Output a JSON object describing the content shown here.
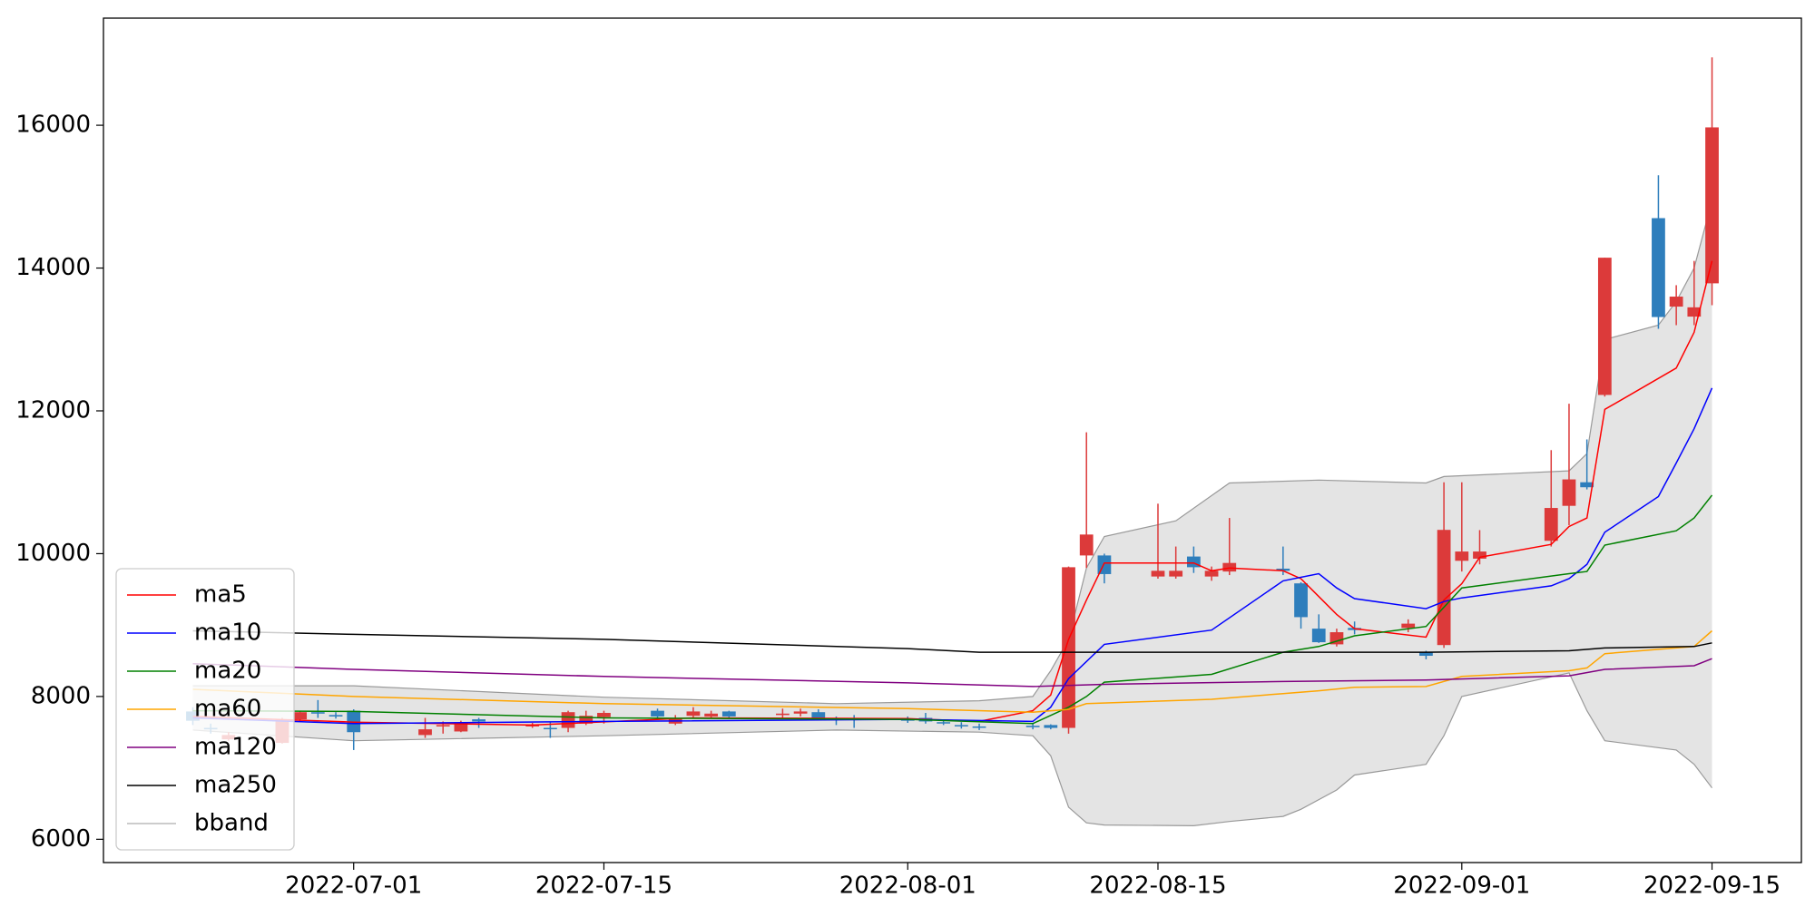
{
  "chart_data": {
    "type": "candlestick",
    "x": [
      "2022-06-22",
      "2022-06-23",
      "2022-06-24",
      "2022-06-27",
      "2022-06-28",
      "2022-06-29",
      "2022-06-30",
      "2022-07-01",
      "2022-07-05",
      "2022-07-06",
      "2022-07-07",
      "2022-07-08",
      "2022-07-11",
      "2022-07-12",
      "2022-07-13",
      "2022-07-14",
      "2022-07-15",
      "2022-07-18",
      "2022-07-19",
      "2022-07-20",
      "2022-07-21",
      "2022-07-22",
      "2022-07-25",
      "2022-07-26",
      "2022-07-27",
      "2022-07-28",
      "2022-07-29",
      "2022-08-01",
      "2022-08-02",
      "2022-08-03",
      "2022-08-04",
      "2022-08-05",
      "2022-08-08",
      "2022-08-09",
      "2022-08-10",
      "2022-08-11",
      "2022-08-12",
      "2022-08-15",
      "2022-08-16",
      "2022-08-17",
      "2022-08-18",
      "2022-08-19",
      "2022-08-22",
      "2022-08-23",
      "2022-08-24",
      "2022-08-25",
      "2022-08-26",
      "2022-08-29",
      "2022-08-30",
      "2022-08-31",
      "2022-09-01",
      "2022-09-02",
      "2022-09-06",
      "2022-09-07",
      "2022-09-08",
      "2022-09-09",
      "2022-09-12",
      "2022-09-13",
      "2022-09-14",
      "2022-09-15"
    ],
    "open": [
      7790,
      7560,
      7400,
      7350,
      7680,
      7780,
      7740,
      7800,
      7460,
      7580,
      7510,
      7680,
      7580,
      7560,
      7560,
      7620,
      7710,
      7800,
      7620,
      7730,
      7720,
      7790,
      7740,
      7760,
      7780,
      7700,
      7690,
      7680,
      7700,
      7640,
      7600,
      7580,
      7590,
      7600,
      7560,
      9975,
      9975,
      9680,
      9680,
      9960,
      9680,
      9750,
      9790,
      9584,
      8950,
      8730,
      8960,
      8960,
      8620,
      8720,
      9900,
      9930,
      10180,
      10670,
      11000,
      12223,
      14699,
      13460,
      13320,
      13786
    ],
    "high": [
      7850,
      7620,
      7500,
      7700,
      7800,
      7950,
      7780,
      7820,
      7700,
      7650,
      7660,
      7700,
      7630,
      7650,
      7800,
      7800,
      7800,
      7830,
      7740,
      7850,
      7800,
      7800,
      7830,
      7830,
      7820,
      7720,
      7740,
      7720,
      7770,
      7680,
      7640,
      7620,
      7620,
      7610,
      9820,
      11700,
      10000,
      10700,
      10100,
      10100,
      9820,
      10500,
      10100,
      9600,
      9150,
      8950,
      9050,
      9080,
      8640,
      11000,
      11000,
      10330,
      11450,
      12100,
      11600,
      14145,
      15300,
      13760,
      14100,
      16950
    ],
    "low": [
      7600,
      7480,
      7380,
      7340,
      7650,
      7700,
      7690,
      7250,
      7420,
      7480,
      7500,
      7560,
      7560,
      7420,
      7500,
      7600,
      7620,
      7690,
      7600,
      7700,
      7700,
      7700,
      7690,
      7720,
      7680,
      7600,
      7560,
      7630,
      7620,
      7600,
      7550,
      7530,
      7540,
      7540,
      7480,
      9800,
      9584,
      9650,
      9650,
      9730,
      9620,
      9700,
      9700,
      8950,
      8750,
      8700,
      8870,
      8900,
      8520,
      8680,
      9750,
      9850,
      10100,
      10400,
      10900,
      12200,
      13150,
      13200,
      13200,
      13480
    ],
    "close": [
      7660,
      7540,
      7460,
      7680,
      7780,
      7760,
      7720,
      7500,
      7540,
      7600,
      7630,
      7650,
      7610,
      7550,
      7780,
      7730,
      7770,
      7720,
      7700,
      7790,
      7760,
      7720,
      7760,
      7790,
      7690,
      7680,
      7670,
      7660,
      7650,
      7630,
      7590,
      7570,
      7570,
      7560,
      9810,
      10268,
      9714,
      9760,
      9760,
      9810,
      9760,
      9870,
      9760,
      9111,
      8760,
      8900,
      8930,
      9020,
      8570,
      10333,
      10030,
      10030,
      10640,
      11040,
      10930,
      14145,
      13314,
      13600,
      13450,
      15970
    ],
    "up_color": "#dc3a3a",
    "down_color": "#2e7ebc",
    "series": [
      {
        "name": "ma5",
        "color": "#ff0000",
        "x": [
          "2022-06-22",
          "2022-07-01",
          "2022-07-11",
          "2022-07-20",
          "2022-08-01",
          "2022-08-05",
          "2022-08-08",
          "2022-08-09",
          "2022-08-10",
          "2022-08-11",
          "2022-08-12",
          "2022-08-17",
          "2022-08-18",
          "2022-08-19",
          "2022-08-22",
          "2022-08-23",
          "2022-08-24",
          "2022-08-25",
          "2022-08-26",
          "2022-08-30",
          "2022-08-31",
          "2022-09-01",
          "2022-09-02",
          "2022-09-06",
          "2022-09-07",
          "2022-09-08",
          "2022-09-09",
          "2022-09-13",
          "2022-09-14",
          "2022-09-15"
        ],
        "values": [
          7720,
          7640,
          7600,
          7700,
          7690,
          7650,
          7800,
          8020,
          8800,
          9350,
          9870,
          9870,
          9760,
          9800,
          9760,
          9650,
          9400,
          9150,
          8950,
          8830,
          9350,
          9580,
          9950,
          10130,
          10380,
          10500,
          12020,
          12600,
          13100,
          14100
        ]
      },
      {
        "name": "ma10",
        "color": "#0000ff",
        "x": [
          "2022-06-22",
          "2022-07-01",
          "2022-07-15",
          "2022-08-01",
          "2022-08-08",
          "2022-08-09",
          "2022-08-10",
          "2022-08-12",
          "2022-08-18",
          "2022-08-22",
          "2022-08-24",
          "2022-08-25",
          "2022-08-26",
          "2022-08-30",
          "2022-08-31",
          "2022-09-01",
          "2022-09-06",
          "2022-09-07",
          "2022-09-08",
          "2022-09-09",
          "2022-09-12",
          "2022-09-13",
          "2022-09-14",
          "2022-09-15"
        ],
        "values": [
          7700,
          7620,
          7650,
          7680,
          7650,
          7850,
          8250,
          8730,
          8930,
          9620,
          9720,
          9520,
          9370,
          9230,
          9330,
          9380,
          9550,
          9650,
          9850,
          10300,
          10800,
          11270,
          11750,
          12320
        ]
      },
      {
        "name": "ma20",
        "color": "#008000",
        "x": [
          "2022-06-22",
          "2022-07-01",
          "2022-07-15",
          "2022-08-01",
          "2022-08-08",
          "2022-08-10",
          "2022-08-11",
          "2022-08-12",
          "2022-08-18",
          "2022-08-22",
          "2022-08-24",
          "2022-08-26",
          "2022-08-30",
          "2022-08-31",
          "2022-09-01",
          "2022-09-07",
          "2022-09-08",
          "2022-09-09",
          "2022-09-13",
          "2022-09-14",
          "2022-09-15"
        ],
        "values": [
          7800,
          7790,
          7700,
          7680,
          7620,
          7850,
          8000,
          8200,
          8310,
          8620,
          8700,
          8850,
          8980,
          9250,
          9520,
          9720,
          9750,
          10120,
          10320,
          10500,
          10820
        ]
      },
      {
        "name": "ma60",
        "color": "#ffa500",
        "x": [
          "2022-06-22",
          "2022-07-01",
          "2022-07-15",
          "2022-08-01",
          "2022-08-08",
          "2022-08-10",
          "2022-08-11",
          "2022-08-18",
          "2022-08-22",
          "2022-08-24",
          "2022-08-26",
          "2022-08-30",
          "2022-09-01",
          "2022-09-07",
          "2022-09-08",
          "2022-09-09",
          "2022-09-14",
          "2022-09-15"
        ],
        "values": [
          8100,
          8000,
          7900,
          7830,
          7780,
          7820,
          7900,
          7960,
          8040,
          8080,
          8130,
          8140,
          8280,
          8360,
          8400,
          8600,
          8700,
          8920
        ]
      },
      {
        "name": "ma120",
        "color": "#800080",
        "x": [
          "2022-06-22",
          "2022-07-01",
          "2022-07-15",
          "2022-08-01",
          "2022-08-08",
          "2022-08-12",
          "2022-08-22",
          "2022-08-30",
          "2022-09-07",
          "2022-09-09",
          "2022-09-14",
          "2022-09-15"
        ],
        "values": [
          8460,
          8380,
          8280,
          8190,
          8140,
          8170,
          8210,
          8230,
          8290,
          8380,
          8430,
          8530
        ]
      },
      {
        "name": "ma250",
        "color": "#000000",
        "x": [
          "2022-06-22",
          "2022-07-01",
          "2022-07-15",
          "2022-08-01",
          "2022-08-05",
          "2022-08-30",
          "2022-09-07",
          "2022-09-09",
          "2022-09-14",
          "2022-09-15"
        ],
        "values": [
          8920,
          8870,
          8800,
          8670,
          8620,
          8620,
          8640,
          8680,
          8700,
          8750
        ]
      }
    ],
    "band": {
      "name": "bband",
      "color": "#999999",
      "fill": "#e4e4e4",
      "upper": {
        "x": [
          "2022-06-22",
          "2022-07-01",
          "2022-07-15",
          "2022-07-28",
          "2022-08-05",
          "2022-08-08",
          "2022-08-09",
          "2022-08-10",
          "2022-08-11",
          "2022-08-12",
          "2022-08-16",
          "2022-08-19",
          "2022-08-24",
          "2022-08-30",
          "2022-08-31",
          "2022-09-07",
          "2022-09-08",
          "2022-09-09",
          "2022-09-12",
          "2022-09-13",
          "2022-09-14",
          "2022-09-15"
        ],
        "values": [
          8150,
          8150,
          7990,
          7900,
          7940,
          8000,
          8360,
          8800,
          9800,
          10240,
          10460,
          10990,
          11030,
          10990,
          11080,
          11160,
          11400,
          13000,
          13200,
          13530,
          14000,
          14940
        ]
      },
      "lower": {
        "x": [
          "2022-06-22",
          "2022-07-01",
          "2022-07-15",
          "2022-07-28",
          "2022-08-05",
          "2022-08-08",
          "2022-08-09",
          "2022-08-10",
          "2022-08-11",
          "2022-08-12",
          "2022-08-17",
          "2022-08-19",
          "2022-08-22",
          "2022-08-23",
          "2022-08-25",
          "2022-08-26",
          "2022-08-30",
          "2022-08-31",
          "2022-09-01",
          "2022-09-07",
          "2022-09-08",
          "2022-09-09",
          "2022-09-13",
          "2022-09-14",
          "2022-09-15"
        ],
        "values": [
          7530,
          7380,
          7450,
          7530,
          7500,
          7450,
          7170,
          6450,
          6230,
          6200,
          6190,
          6250,
          6320,
          6420,
          6690,
          6900,
          7050,
          7450,
          8000,
          8330,
          7800,
          7380,
          7250,
          7050,
          6720
        ]
      }
    },
    "xlim": [
      "2022-06-17",
      "2022-09-20"
    ],
    "xticks": [
      "2022-07-01",
      "2022-07-15",
      "2022-08-01",
      "2022-08-15",
      "2022-09-01",
      "2022-09-15"
    ],
    "ylim": [
      5674,
      17500
    ],
    "yticks": [
      6000,
      8000,
      10000,
      12000,
      14000,
      16000
    ],
    "legend": "lower left"
  }
}
